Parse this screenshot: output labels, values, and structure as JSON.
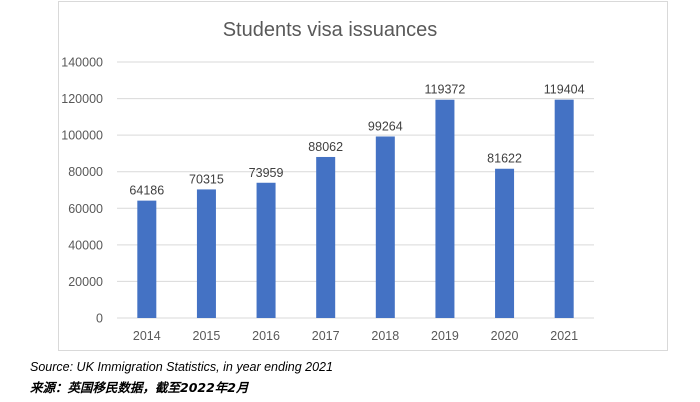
{
  "chart_data": {
    "type": "bar",
    "title": "Students visa issuances",
    "categories": [
      "2014",
      "2015",
      "2016",
      "2017",
      "2018",
      "2019",
      "2020",
      "2021"
    ],
    "values": [
      64186,
      70315,
      73959,
      88062,
      99264,
      119372,
      81622,
      119404
    ],
    "ylim": [
      0,
      140000
    ],
    "yticks": [
      "0",
      "20000",
      "40000",
      "60000",
      "80000",
      "100000",
      "120000",
      "140000"
    ],
    "grid": true,
    "legend": "none",
    "colors": {
      "bar": "#4472c4",
      "grid": "#d9d9d9",
      "text": "#595959",
      "value_label": "#404040"
    }
  },
  "footer": {
    "source_en": "Source: UK Immigration Statistics, in year ending 2021",
    "source_cn": "来源：英国移民数据，截至2022年2月"
  }
}
